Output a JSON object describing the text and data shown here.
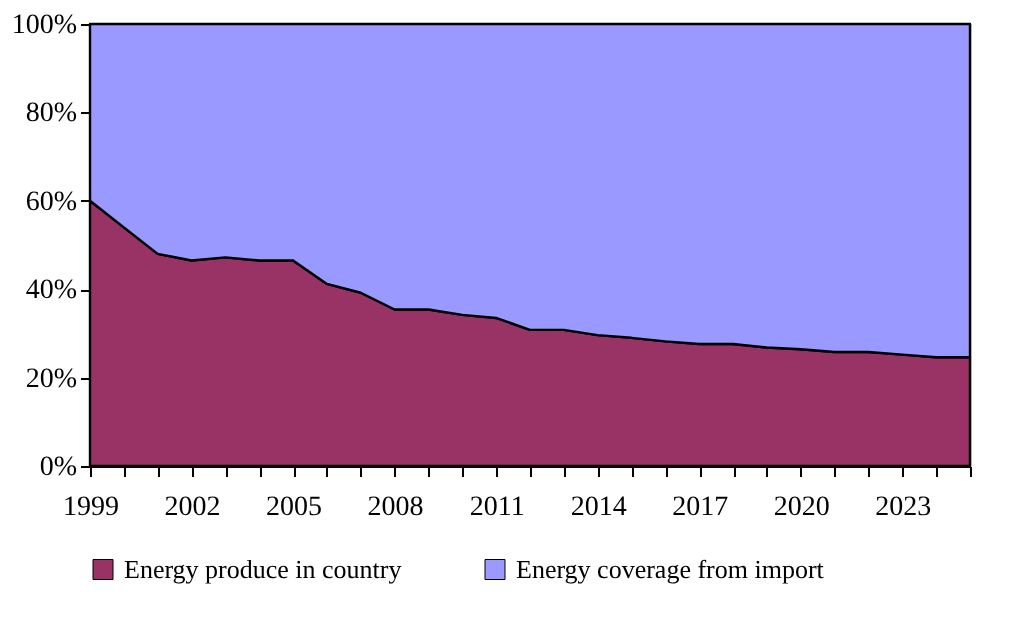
{
  "chart_data": {
    "type": "area",
    "stacked": true,
    "legend": "bottom",
    "x": [
      1999,
      2000,
      2001,
      2002,
      2003,
      2004,
      2005,
      2006,
      2007,
      2008,
      2009,
      2010,
      2011,
      2012,
      2013,
      2014,
      2015,
      2016,
      2017,
      2018,
      2019,
      2020,
      2021,
      2022,
      2023,
      2024,
      2025
    ],
    "xlim": [
      1999,
      2025
    ],
    "xticks": [
      1999,
      {
        "value": 2000,
        "label": null
      },
      {
        "value": 2001,
        "label": null
      },
      2002,
      {
        "value": 2003,
        "label": null
      },
      {
        "value": 2004,
        "label": null
      },
      2005,
      {
        "value": 2006,
        "label": null
      },
      {
        "value": 2007,
        "label": null
      },
      2008,
      {
        "value": 2009,
        "label": null
      },
      {
        "value": 2010,
        "label": null
      },
      2011,
      {
        "value": 2012,
        "label": null
      },
      {
        "value": 2013,
        "label": null
      },
      2014,
      {
        "value": 2015,
        "label": null
      },
      {
        "value": 2016,
        "label": null
      },
      2017,
      {
        "value": 2018,
        "label": null
      },
      {
        "value": 2019,
        "label": null
      },
      2020,
      {
        "value": 2021,
        "label": null
      },
      {
        "value": 2022,
        "label": null
      },
      2023,
      {
        "value": 2024,
        "label": null
      },
      {
        "value": 2025,
        "label": null
      }
    ],
    "ylim": [
      0,
      100
    ],
    "yticks": [
      {
        "value": 0,
        "label": "0%"
      },
      {
        "value": 20,
        "label": "20%"
      },
      {
        "value": 40,
        "label": "40%"
      },
      {
        "value": 60,
        "label": "60%"
      },
      {
        "value": 80,
        "label": "80%"
      },
      {
        "value": 100,
        "label": "100%"
      }
    ],
    "series": [
      {
        "name": "Energy produce in country",
        "color": "#993366",
        "values": [
          60,
          54,
          48,
          46.5,
          47.2,
          46.5,
          46.5,
          41.2,
          39.2,
          35.4,
          35.4,
          34.2,
          33.5,
          30.8,
          30.8,
          29.6,
          29,
          28.2,
          27.6,
          27.6,
          26.8,
          26.4,
          25.8,
          25.8,
          25.2,
          24.6,
          24.6
        ]
      },
      {
        "name": "Energy coverage from import",
        "color": "#9999ff",
        "values": [
          40,
          46,
          52,
          53.5,
          52.8,
          53.5,
          53.5,
          58.8,
          60.8,
          64.6,
          64.6,
          65.8,
          66.5,
          69.2,
          69.2,
          70.4,
          71,
          71.8,
          72.4,
          72.4,
          73.2,
          73.6,
          74.2,
          74.2,
          74.8,
          75.4,
          75.4
        ]
      }
    ]
  }
}
